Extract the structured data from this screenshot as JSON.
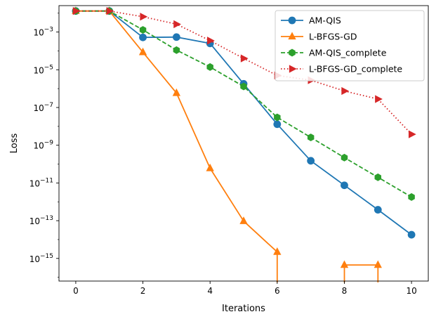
{
  "chart_data": {
    "type": "line",
    "title": "",
    "xlabel": "Iterations",
    "ylabel": "Loss",
    "xlim": [
      -0.5,
      10.5
    ],
    "ylim_log10": [
      -16.2,
      -1.6
    ],
    "yscale": "log",
    "grid": false,
    "legend_position": "top-right",
    "x_ticks": [
      0,
      2,
      4,
      6,
      8,
      10
    ],
    "x_tick_labels": [
      "0",
      "2",
      "4",
      "6",
      "8",
      "10"
    ],
    "y_ticks_log10": [
      -3,
      -5,
      -7,
      -9,
      -11,
      -13,
      -15
    ],
    "y_tick_labels": [
      {
        "base": "10",
        "exp": "−3"
      },
      {
        "base": "10",
        "exp": "−5"
      },
      {
        "base": "10",
        "exp": "−7"
      },
      {
        "base": "10",
        "exp": "−9"
      },
      {
        "base": "10",
        "exp": "−11"
      },
      {
        "base": "10",
        "exp": "−13"
      },
      {
        "base": "10",
        "exp": "−15"
      }
    ],
    "series": [
      {
        "name": "AM-QIS",
        "color": "#1f77b4",
        "linestyle": "solid",
        "marker": "circle",
        "x": [
          0,
          1,
          2,
          3,
          4,
          5,
          6,
          7,
          8,
          9,
          10
        ],
        "y": [
          0.013,
          0.013,
          0.00052,
          0.00054,
          0.00025,
          1.8e-06,
          1.3e-08,
          1.5e-10,
          7.5e-12,
          3.8e-13,
          1.8e-14
        ]
      },
      {
        "name": "L-BFGS-GD",
        "color": "#ff7f0e",
        "linestyle": "solid",
        "marker": "triangle-up",
        "x": [
          0,
          1,
          2,
          3,
          4,
          5,
          6,
          7,
          8,
          9
        ],
        "y": [
          0.013,
          0.013,
          8.5e-05,
          5.8e-07,
          6e-11,
          9.5e-14,
          2.2e-15,
          null,
          4.5e-16,
          4.5e-16
        ],
        "drops_below_axis_at": [
          6,
          8,
          9
        ]
      },
      {
        "name": "AM-QIS_complete",
        "color": "#2ca02c",
        "linestyle": "dashed",
        "marker": "hexagon",
        "x": [
          0,
          1,
          2,
          3,
          4,
          5,
          6,
          7,
          8,
          9,
          10
        ],
        "y": [
          0.013,
          0.013,
          0.0013,
          0.00011,
          1.4e-05,
          1.3e-06,
          3e-08,
          2.6e-09,
          2.2e-10,
          2e-11,
          1.8e-12
        ]
      },
      {
        "name": "L-BFGS-GD_complete",
        "color": "#d62728",
        "linestyle": "dotted",
        "marker": "triangle-right",
        "x": [
          0,
          1,
          2,
          3,
          4,
          5,
          6,
          7,
          8,
          9,
          10
        ],
        "y": [
          0.013,
          0.013,
          0.0065,
          0.0026,
          0.00035,
          4e-05,
          5e-06,
          2.8e-06,
          7.5e-07,
          2.8e-07,
          3.8e-09
        ]
      }
    ]
  }
}
